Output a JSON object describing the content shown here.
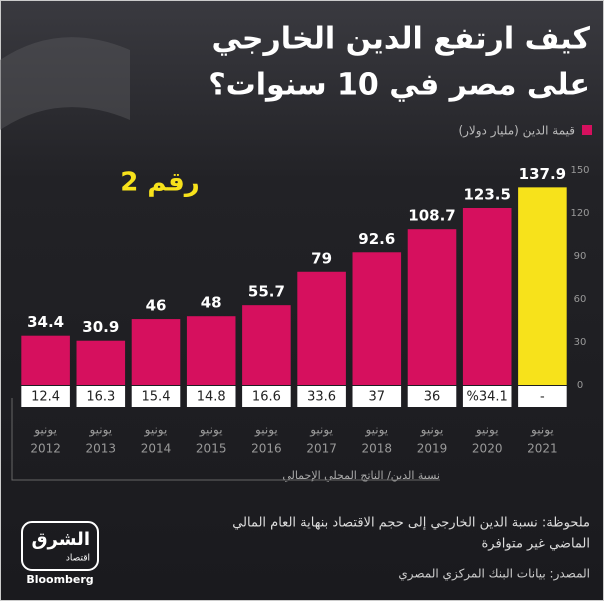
{
  "chart_data": {
    "type": "bar",
    "title_lines": [
      "كيف ارتفع الدين الخارجي",
      "على مصر في 10 سنوات؟"
    ],
    "legend_label": "قيمة الدين (مليار دولار)",
    "annotation": "رقم 2",
    "categories": [
      [
        "يونيو",
        "2012"
      ],
      [
        "يونيو",
        "2013"
      ],
      [
        "يونيو",
        "2014"
      ],
      [
        "يونيو",
        "2015"
      ],
      [
        "يونيو",
        "2016"
      ],
      [
        "يونيو",
        "2017"
      ],
      [
        "يونيو",
        "2018"
      ],
      [
        "يونيو",
        "2019"
      ],
      [
        "يونيو",
        "2020"
      ],
      [
        "يونيو",
        "2021"
      ]
    ],
    "values": [
      34.4,
      30.9,
      46,
      48,
      55.7,
      79,
      92.6,
      108.7,
      123.5,
      137.9
    ],
    "colors": [
      "#d6105e",
      "#d6105e",
      "#d6105e",
      "#d6105e",
      "#d6105e",
      "#d6105e",
      "#d6105e",
      "#d6105e",
      "#d6105e",
      "#f7e21b"
    ],
    "ylim": [
      0,
      150
    ],
    "yticks": [
      0,
      30,
      60,
      90,
      120,
      150
    ],
    "ratio_label": "نسبة الدين/ الناتج المحلي الإجمالي",
    "ratio_labels": [
      "12.4",
      "16.3",
      "15.4",
      "14.8",
      "16.6",
      "33.6",
      "37",
      "36",
      "%34.1",
      "-"
    ],
    "note_lines": [
      "ملحوظة: نسبة الدين الخارجي إلى حجم الاقتصاد بنهاية العام المالي",
      "الماضي غير متوافرة"
    ],
    "source": "المصدر: بيانات البنك المركزي المصري",
    "logo": {
      "name": "الشرق",
      "sub": "اقتصاد",
      "brand": "Bloomberg"
    }
  }
}
